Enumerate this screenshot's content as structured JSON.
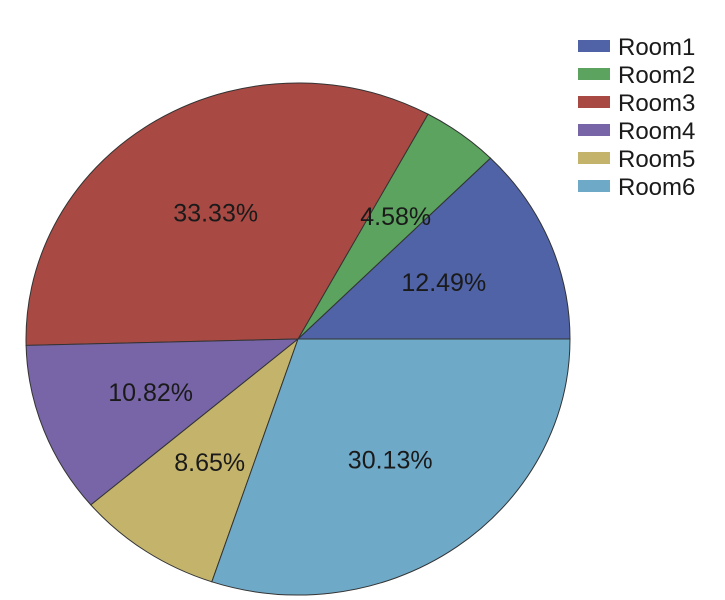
{
  "chart_data": {
    "type": "pie",
    "title": "",
    "legend_position": "top-right",
    "series": [
      {
        "name": "Room1",
        "value": 12.49,
        "label": "12.49%",
        "color": "#4F63A6"
      },
      {
        "name": "Room2",
        "value": 4.58,
        "label": "4.58%",
        "color": "#5BA35E"
      },
      {
        "name": "Room3",
        "value": 33.33,
        "label": "33.33%",
        "color": "#A84A43"
      },
      {
        "name": "Room4",
        "value": 10.82,
        "label": "10.82%",
        "color": "#7765A8"
      },
      {
        "name": "Room5",
        "value": 8.65,
        "label": "8.65%",
        "color": "#C4B46B"
      },
      {
        "name": "Room6",
        "value": 30.13,
        "label": "30.13%",
        "color": "#6EA9C8"
      }
    ]
  }
}
